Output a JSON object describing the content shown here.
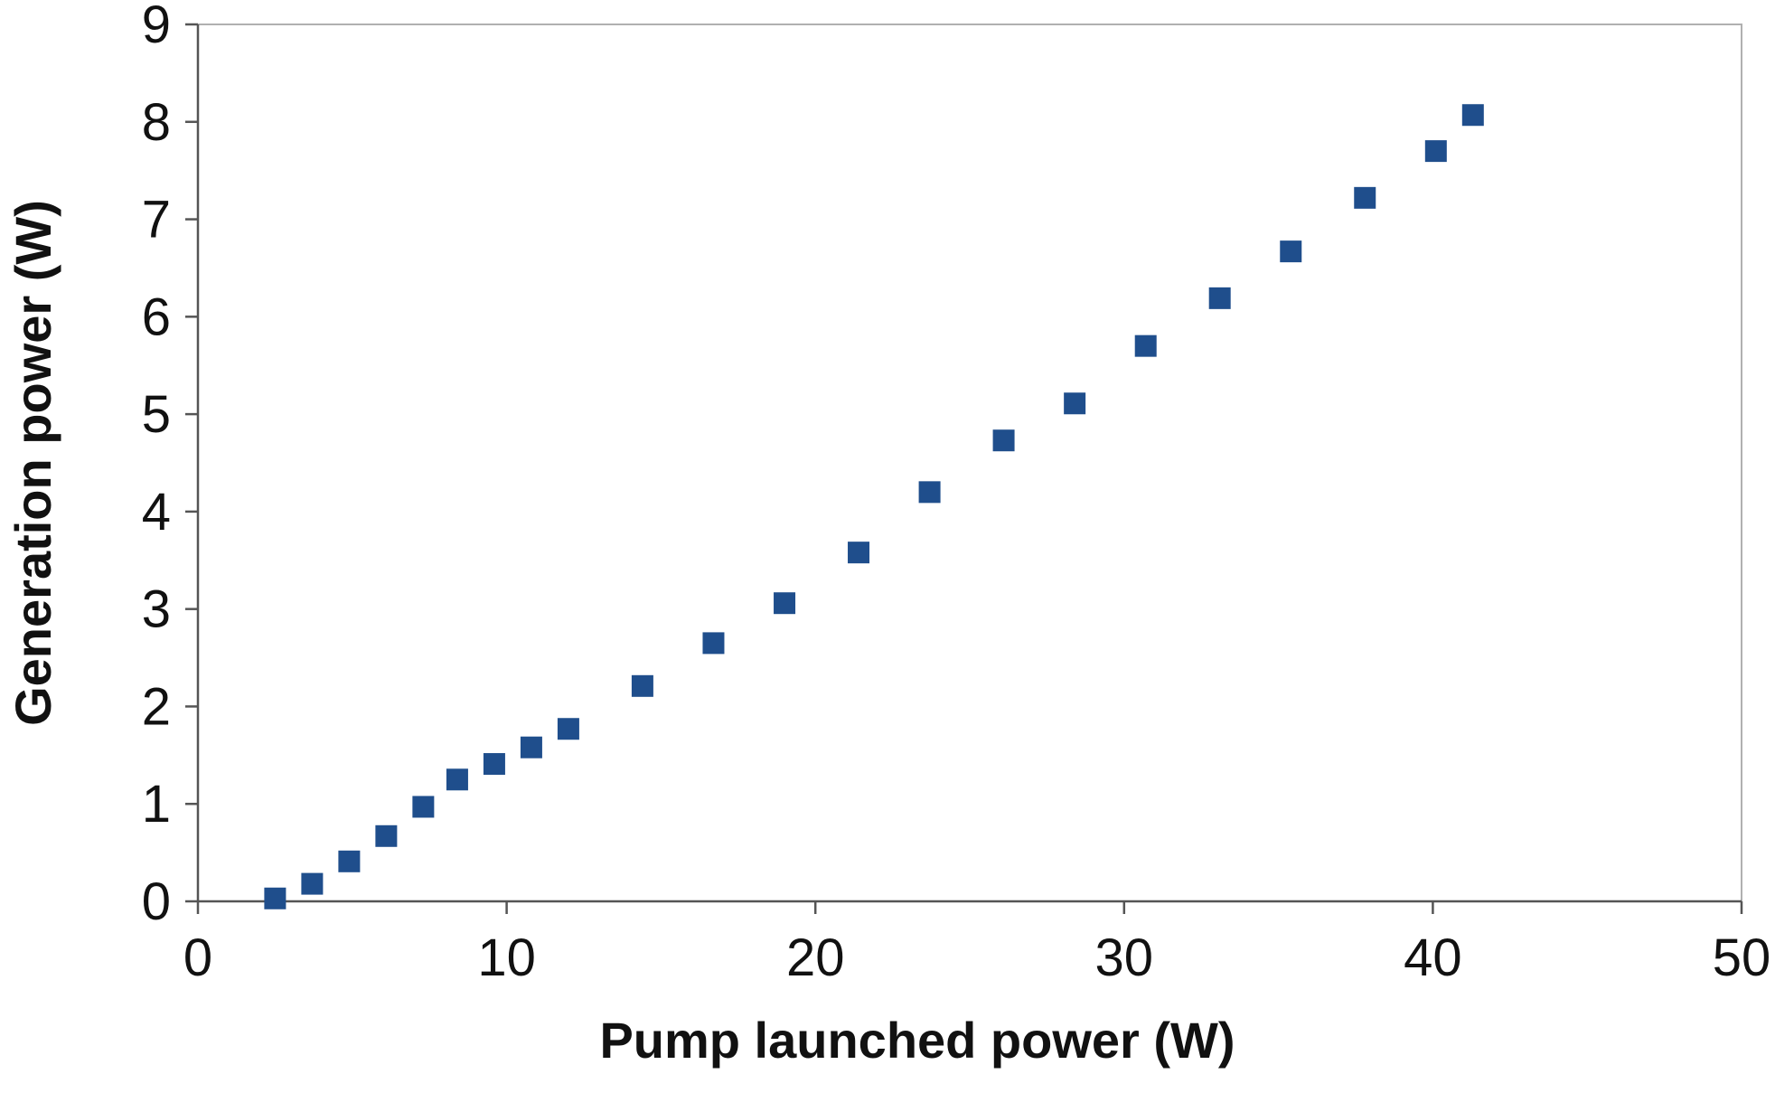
{
  "chart_data": {
    "type": "scatter",
    "title": "",
    "xlabel": "Pump launched power (W)",
    "ylabel": "Generation power (W)",
    "xlim": [
      0,
      50
    ],
    "ylim": [
      0,
      9
    ],
    "x_ticks": [
      0,
      10,
      20,
      30,
      40,
      50
    ],
    "y_ticks": [
      0,
      1,
      2,
      3,
      4,
      5,
      6,
      7,
      8,
      9
    ],
    "grid": false,
    "legend": "none",
    "marker": "square",
    "marker_color": "#1F4E8C",
    "series": [
      {
        "points": [
          {
            "x": 2.5,
            "y": 0.03
          },
          {
            "x": 3.7,
            "y": 0.18
          },
          {
            "x": 4.9,
            "y": 0.41
          },
          {
            "x": 6.1,
            "y": 0.67
          },
          {
            "x": 7.3,
            "y": 0.97
          },
          {
            "x": 8.4,
            "y": 1.25
          },
          {
            "x": 9.6,
            "y": 1.41
          },
          {
            "x": 10.8,
            "y": 1.58
          },
          {
            "x": 12.0,
            "y": 1.77
          },
          {
            "x": 14.4,
            "y": 2.21
          },
          {
            "x": 16.7,
            "y": 2.65
          },
          {
            "x": 19.0,
            "y": 3.06
          },
          {
            "x": 21.4,
            "y": 3.58
          },
          {
            "x": 23.7,
            "y": 4.2
          },
          {
            "x": 26.1,
            "y": 4.73
          },
          {
            "x": 28.4,
            "y": 5.11
          },
          {
            "x": 30.7,
            "y": 5.7
          },
          {
            "x": 33.1,
            "y": 6.19
          },
          {
            "x": 35.4,
            "y": 6.67
          },
          {
            "x": 37.8,
            "y": 7.22
          },
          {
            "x": 40.1,
            "y": 7.7
          },
          {
            "x": 41.3,
            "y": 8.07
          }
        ]
      }
    ]
  }
}
